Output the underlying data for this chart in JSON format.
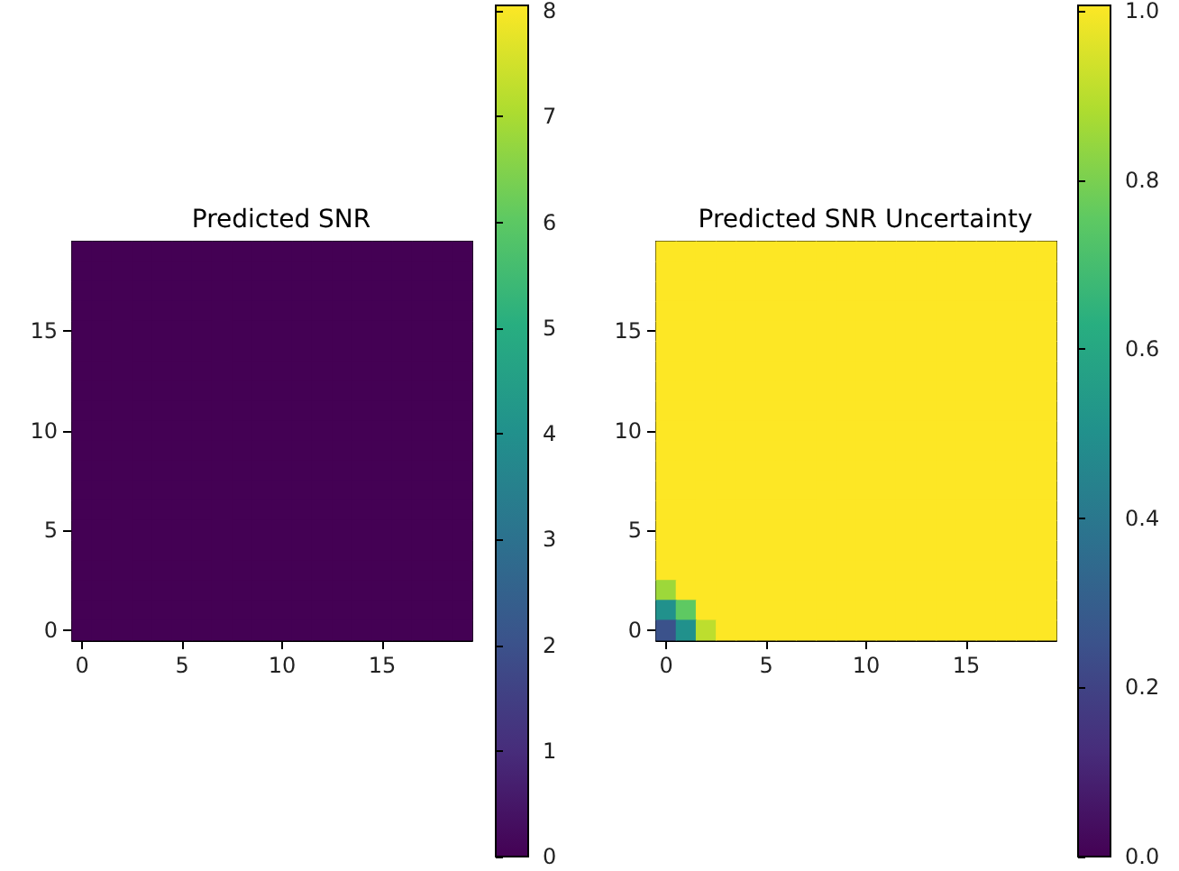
{
  "chart_data": [
    {
      "type": "heatmap",
      "title": "Predicted SNR",
      "categories": [
        "0",
        null,
        null,
        null,
        null,
        "5",
        null,
        null,
        null,
        null,
        "10",
        null,
        null,
        null,
        null,
        "15",
        null,
        null,
        null,
        null
      ],
      "y_categories": [
        null,
        null,
        null,
        null,
        "15",
        null,
        null,
        null,
        null,
        "10",
        null,
        null,
        null,
        null,
        "5",
        null,
        null,
        null,
        null,
        "0"
      ],
      "cells": [
        [
          0,
          0,
          0,
          0,
          0,
          0,
          0,
          0,
          0,
          0,
          0,
          0,
          0,
          0,
          0,
          0,
          0,
          0,
          0,
          0
        ],
        [
          0,
          0,
          0,
          0,
          0,
          0,
          0,
          0,
          0,
          0,
          0,
          0,
          0,
          0,
          0,
          0,
          0,
          0,
          0,
          0
        ],
        [
          0,
          0,
          0,
          0,
          0,
          0,
          0,
          0,
          0,
          0,
          0,
          0,
          0,
          0,
          0,
          0,
          0,
          0,
          0,
          0
        ],
        [
          0,
          0,
          0,
          0,
          0,
          0,
          0,
          0,
          0,
          0,
          0,
          0,
          0,
          0,
          0,
          0,
          0,
          0,
          0,
          0
        ],
        [
          0,
          0,
          0,
          0,
          0,
          0,
          0,
          0,
          0,
          0,
          0,
          0,
          0,
          0,
          0,
          0,
          0,
          0,
          0,
          0
        ],
        [
          0,
          0,
          0,
          0,
          0,
          0,
          0,
          0,
          0,
          0,
          0,
          0,
          0,
          0,
          0,
          0,
          0,
          0,
          0,
          0
        ],
        [
          0,
          0,
          0,
          0,
          0,
          0,
          0,
          0,
          0,
          0,
          0,
          0,
          0,
          0,
          0,
          0,
          0,
          0,
          0,
          0
        ],
        [
          0,
          0,
          0,
          0,
          0,
          0,
          0,
          0,
          0,
          0,
          0,
          0,
          0,
          0,
          0,
          0,
          0,
          0,
          0,
          0
        ],
        [
          0,
          0,
          0,
          0,
          0,
          0,
          0,
          0,
          0,
          0,
          0,
          0,
          0,
          0,
          0,
          0,
          0,
          0,
          0,
          0
        ],
        [
          0,
          0,
          0,
          0,
          0,
          0,
          0,
          0,
          0,
          0,
          0,
          0,
          0,
          0,
          0,
          0,
          0,
          0,
          0,
          0
        ],
        [
          0,
          0,
          0,
          0,
          0,
          0,
          0,
          0,
          0,
          0,
          0,
          0,
          0,
          0,
          0,
          0,
          0,
          0,
          0,
          0
        ],
        [
          0,
          0,
          0,
          0,
          0,
          0,
          0,
          0,
          0,
          0,
          0,
          0,
          0,
          0,
          0,
          0,
          0,
          0,
          0,
          0
        ],
        [
          0,
          0,
          0,
          0,
          0,
          0,
          0,
          0,
          0,
          0,
          0,
          0,
          0,
          0,
          0,
          0,
          0,
          0,
          0,
          0
        ],
        [
          0,
          0,
          0,
          0,
          0,
          0,
          0,
          0,
          0,
          0,
          0,
          0,
          0,
          0,
          0,
          0,
          0,
          0,
          0,
          0
        ],
        [
          0,
          0,
          0,
          0,
          0,
          0,
          0,
          0,
          0,
          0,
          0,
          0,
          0,
          0,
          0,
          0,
          0,
          0,
          0,
          0
        ],
        [
          0,
          0,
          0,
          0,
          0,
          0,
          0,
          0,
          0,
          0,
          0,
          0,
          0,
          0,
          0,
          0,
          0,
          0,
          0,
          0
        ],
        [
          0,
          0,
          0,
          0,
          0,
          0,
          0,
          0,
          0,
          0,
          0,
          0,
          0,
          0,
          0,
          0,
          0,
          0,
          0,
          0
        ],
        [
          0,
          0,
          0,
          0,
          0,
          0,
          0,
          0,
          0,
          0,
          0,
          0,
          0,
          0,
          0,
          0,
          0,
          0,
          0,
          0
        ],
        [
          0,
          0,
          0,
          0,
          0,
          0,
          0,
          0,
          0,
          0,
          0,
          0,
          0,
          0,
          0,
          0,
          0,
          0,
          0,
          0
        ],
        [
          0,
          0,
          0,
          0,
          0,
          0,
          0,
          0,
          0,
          0,
          0,
          0,
          0,
          0,
          0,
          0,
          0,
          0,
          0,
          0
        ]
      ],
      "clim": [
        0,
        8
      ],
      "cticks": [
        0,
        1,
        2,
        3,
        4,
        5,
        6,
        7,
        8
      ]
    },
    {
      "type": "heatmap",
      "title": "Predicted SNR Uncertainty",
      "categories": [
        "0",
        null,
        null,
        null,
        null,
        "5",
        null,
        null,
        null,
        null,
        "10",
        null,
        null,
        null,
        null,
        "15",
        null,
        null,
        null,
        null
      ],
      "y_categories": [
        null,
        null,
        null,
        null,
        "15",
        null,
        null,
        null,
        null,
        "10",
        null,
        null,
        null,
        null,
        "5",
        null,
        null,
        null,
        null,
        "0"
      ],
      "cells": [
        [
          1,
          1,
          1,
          1,
          1,
          1,
          1,
          1,
          1,
          1,
          1,
          1,
          1,
          1,
          1,
          1,
          1,
          1,
          1,
          1
        ],
        [
          1,
          1,
          1,
          1,
          1,
          1,
          1,
          1,
          1,
          1,
          1,
          1,
          1,
          1,
          1,
          1,
          1,
          1,
          1,
          1
        ],
        [
          1,
          1,
          1,
          1,
          1,
          1,
          1,
          1,
          1,
          1,
          1,
          1,
          1,
          1,
          1,
          1,
          1,
          1,
          1,
          1
        ],
        [
          1,
          1,
          1,
          1,
          1,
          1,
          1,
          1,
          1,
          1,
          1,
          1,
          1,
          1,
          1,
          1,
          1,
          1,
          1,
          1
        ],
        [
          1,
          1,
          1,
          1,
          1,
          1,
          1,
          1,
          1,
          1,
          1,
          1,
          1,
          1,
          1,
          1,
          1,
          1,
          1,
          1
        ],
        [
          1,
          1,
          1,
          1,
          1,
          1,
          1,
          1,
          1,
          1,
          1,
          1,
          1,
          1,
          1,
          1,
          1,
          1,
          1,
          1
        ],
        [
          1,
          1,
          1,
          1,
          1,
          1,
          1,
          1,
          1,
          1,
          1,
          1,
          1,
          1,
          1,
          1,
          1,
          1,
          1,
          1
        ],
        [
          1,
          1,
          1,
          1,
          1,
          1,
          1,
          1,
          1,
          1,
          1,
          1,
          1,
          1,
          1,
          1,
          1,
          1,
          1,
          1
        ],
        [
          1,
          1,
          1,
          1,
          1,
          1,
          1,
          1,
          1,
          1,
          1,
          1,
          1,
          1,
          1,
          1,
          1,
          1,
          1,
          1
        ],
        [
          1,
          1,
          1,
          1,
          1,
          1,
          1,
          1,
          1,
          1,
          1,
          1,
          1,
          1,
          1,
          1,
          1,
          1,
          1,
          1
        ],
        [
          1,
          1,
          1,
          1,
          1,
          1,
          1,
          1,
          1,
          1,
          1,
          1,
          1,
          1,
          1,
          1,
          1,
          1,
          1,
          1
        ],
        [
          1,
          1,
          1,
          1,
          1,
          1,
          1,
          1,
          1,
          1,
          1,
          1,
          1,
          1,
          1,
          1,
          1,
          1,
          1,
          1
        ],
        [
          1,
          1,
          1,
          1,
          1,
          1,
          1,
          1,
          1,
          1,
          1,
          1,
          1,
          1,
          1,
          1,
          1,
          1,
          1,
          1
        ],
        [
          1,
          1,
          1,
          1,
          1,
          1,
          1,
          1,
          1,
          1,
          1,
          1,
          1,
          1,
          1,
          1,
          1,
          1,
          1,
          1
        ],
        [
          1,
          1,
          1,
          1,
          1,
          1,
          1,
          1,
          1,
          1,
          1,
          1,
          1,
          1,
          1,
          1,
          1,
          1,
          1,
          1
        ],
        [
          1,
          1,
          1,
          1,
          1,
          1,
          1,
          1,
          1,
          1,
          1,
          1,
          1,
          1,
          1,
          1,
          1,
          1,
          1,
          1
        ],
        [
          1,
          1,
          1,
          1,
          1,
          1,
          1,
          1,
          1,
          1,
          1,
          1,
          1,
          1,
          1,
          1,
          1,
          1,
          1,
          1
        ],
        [
          0.85,
          1,
          1,
          1,
          1,
          1,
          1,
          1,
          1,
          1,
          1,
          1,
          1,
          1,
          1,
          1,
          1,
          1,
          1,
          1
        ],
        [
          0.5,
          0.75,
          1,
          1,
          1,
          1,
          1,
          1,
          1,
          1,
          1,
          1,
          1,
          1,
          1,
          1,
          1,
          1,
          1,
          1
        ],
        [
          0.25,
          0.5,
          0.9,
          1,
          1,
          1,
          1,
          1,
          1,
          1,
          1,
          1,
          1,
          1,
          1,
          1,
          1,
          1,
          1,
          1
        ]
      ],
      "clim": [
        0,
        1
      ],
      "cticks": [
        {
          "value": 0,
          "label": "0.0"
        },
        {
          "value": 0.2,
          "label": "0.2"
        },
        {
          "value": 0.4,
          "label": "0.4"
        },
        {
          "value": 0.6,
          "label": "0.6"
        },
        {
          "value": 0.8,
          "label": "0.8"
        },
        {
          "value": 1,
          "label": "1.0"
        }
      ]
    }
  ]
}
